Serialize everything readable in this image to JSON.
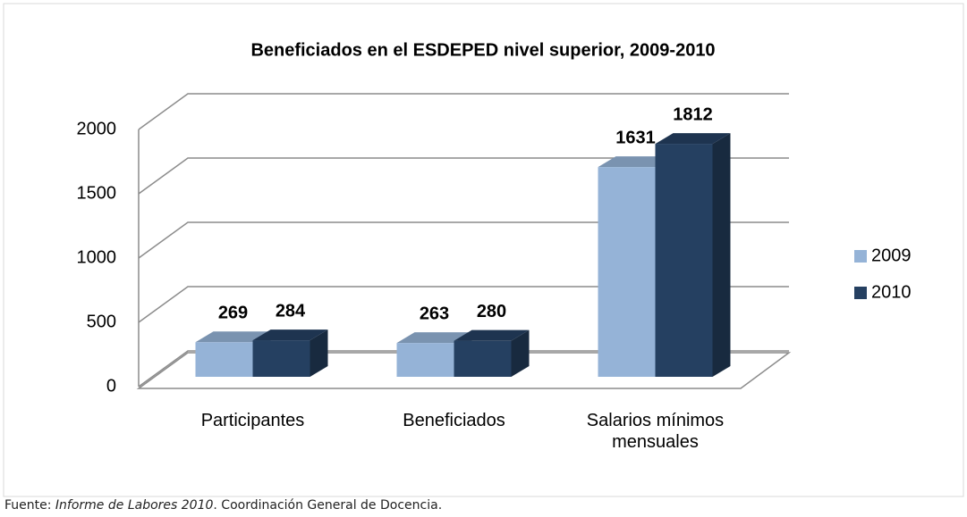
{
  "chart_data": {
    "type": "bar3d",
    "title": "Beneficiados en el ESDEPED nivel superior, 2009-2010",
    "categories": [
      "Participantes",
      "Beneficiados",
      "Salarios mínimos mensuales"
    ],
    "series": [
      {
        "name": "2009",
        "color": "#95b3d7",
        "values": [
          269,
          263,
          1631
        ]
      },
      {
        "name": "2010",
        "color": "#254061",
        "values": [
          284,
          280,
          1812
        ]
      }
    ],
    "ylim": [
      0,
      2000
    ],
    "yticks": [
      0,
      500,
      1000,
      1500,
      2000
    ],
    "grid": true,
    "legend": "right"
  },
  "footer": {
    "prefix": "Fuente:",
    "title": "Informe de Labores 2010",
    "suffix": ". Coordinación General de Docencia."
  }
}
